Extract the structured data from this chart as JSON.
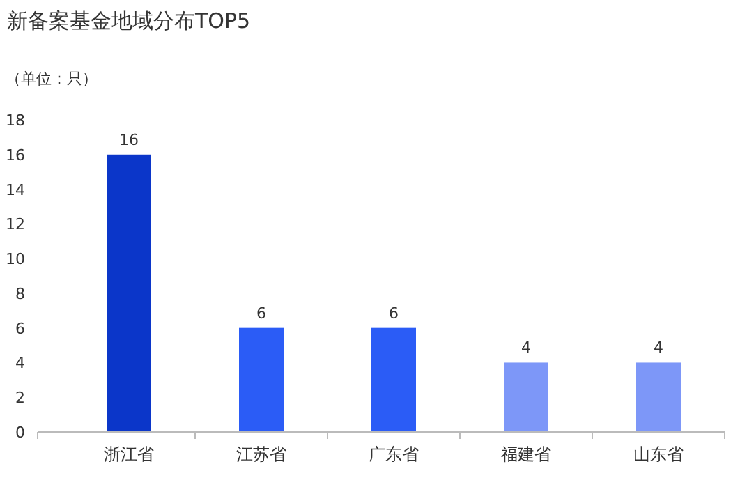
{
  "chart_data": {
    "type": "bar",
    "title": "新备案基金地域分布TOP5",
    "ylabel": "（单位：只）",
    "categories": [
      "浙江省",
      "江苏省",
      "广东省",
      "福建省",
      "山东省"
    ],
    "values": [
      16,
      6,
      6,
      4,
      4
    ],
    "colors": [
      "#0b36c9",
      "#2b5cf6",
      "#2b5cf6",
      "#7d97f8",
      "#7d97f8"
    ],
    "ylim": [
      0,
      18
    ],
    "yticks": [
      0,
      2,
      4,
      6,
      8,
      10,
      12,
      14,
      16,
      18
    ],
    "data_labels": true
  }
}
